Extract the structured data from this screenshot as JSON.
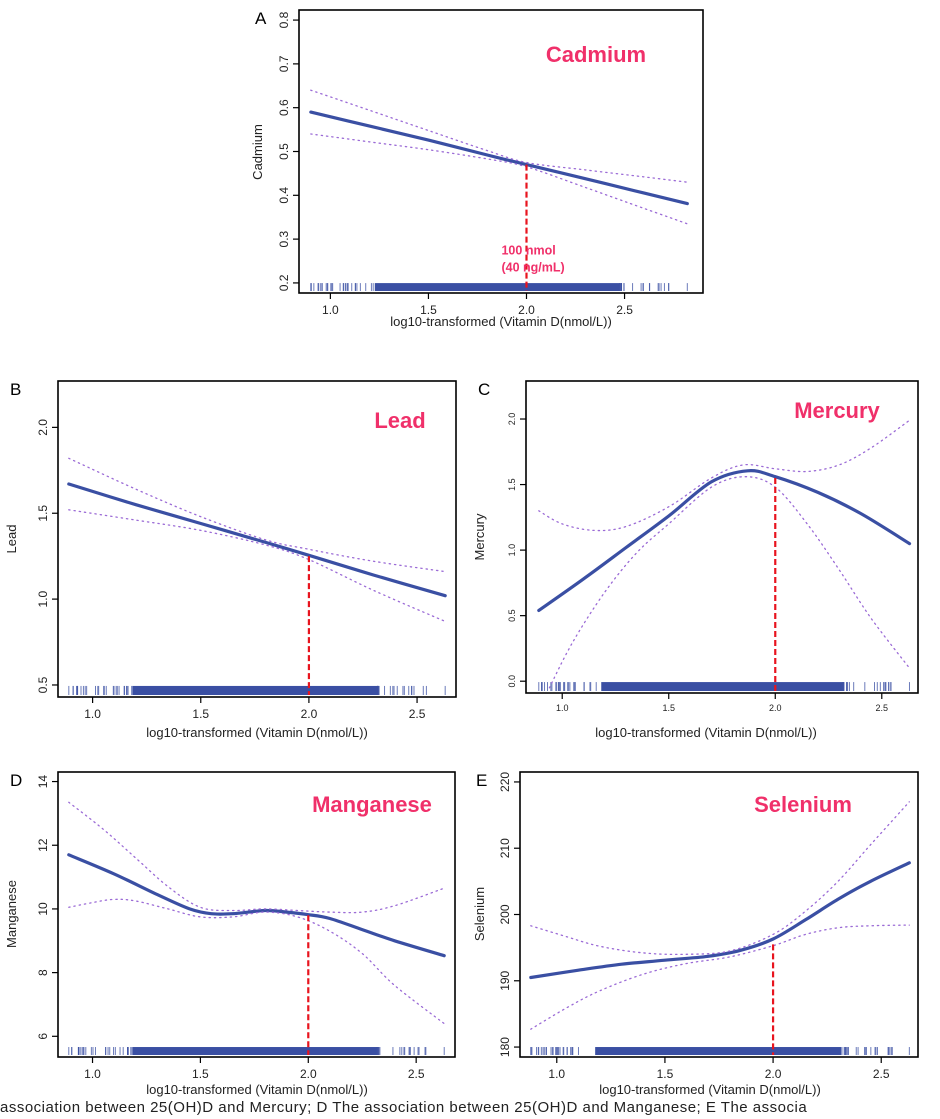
{
  "figure": {
    "caption_partial": "association between 25(OH)D and Mercury; D The association between 25(OH)D and Manganese; E The associa",
    "colors": {
      "fit_line": "#3A4FA3",
      "ci_line": "#9B6BD6",
      "threshold_line": "#E8141E",
      "element_label": "#F0306A",
      "rug": "#3A4FA3",
      "axis": "#000000"
    }
  },
  "chart_data": [
    {
      "panel": "A",
      "type": "line",
      "title": "Cadmium",
      "xlabel": "log10-transformed (Vitamin D(nmol/L))",
      "ylabel": "Cadmium",
      "xlim": [
        0.84,
        2.9
      ],
      "ylim": [
        0.177,
        0.823
      ],
      "xticks": [
        1.0,
        1.5,
        2.0,
        2.5
      ],
      "xtick_labels": [
        "1.0",
        "1.5",
        "2.0",
        "2.5"
      ],
      "yticks": [
        0.2,
        0.3,
        0.4,
        0.5,
        0.6,
        0.7,
        0.8
      ],
      "ytick_labels": [
        "0.2",
        "0.3",
        "0.4",
        "0.5",
        "0.6",
        "0.7",
        "0.8"
      ],
      "threshold_x": 2.0,
      "threshold_y": 0.47,
      "annotation": [
        "100 nmol",
        "(40 ng/mL)"
      ],
      "rug_range": [
        0.9,
        2.82
      ],
      "series": [
        {
          "name": "fit",
          "style": "solid",
          "x": [
            0.9,
            1.2,
            1.5,
            1.8,
            2.0,
            2.3,
            2.6,
            2.82
          ],
          "y": [
            0.59,
            0.558,
            0.526,
            0.492,
            0.47,
            0.438,
            0.405,
            0.381
          ]
        },
        {
          "name": "upper_ci",
          "style": "dotted",
          "x": [
            0.9,
            1.2,
            1.5,
            1.8,
            2.0,
            2.3,
            2.6,
            2.82
          ],
          "y": [
            0.64,
            0.594,
            0.548,
            0.502,
            0.475,
            0.458,
            0.442,
            0.43
          ]
        },
        {
          "name": "lower_ci",
          "style": "dotted",
          "x": [
            0.9,
            1.2,
            1.5,
            1.8,
            2.0,
            2.3,
            2.6,
            2.82
          ],
          "y": [
            0.54,
            0.522,
            0.504,
            0.483,
            0.465,
            0.418,
            0.37,
            0.335
          ]
        }
      ]
    },
    {
      "panel": "B",
      "type": "line",
      "title": "Lead",
      "xlabel": "log10-transformed (Vitamin D(nmol/L))",
      "ylabel": "Lead",
      "xlim": [
        0.84,
        2.68
      ],
      "ylim": [
        0.43,
        2.27
      ],
      "xticks": [
        1.0,
        1.5,
        2.0,
        2.5
      ],
      "xtick_labels": [
        "1.0",
        "1.5",
        "2.0",
        "2.5"
      ],
      "yticks": [
        0.5,
        1.0,
        1.5,
        2.0
      ],
      "ytick_labels": [
        "0.5",
        "1.0",
        "1.5",
        "2.0"
      ],
      "threshold_x": 2.0,
      "threshold_y": 1.25,
      "annotation": [],
      "rug_range": [
        0.89,
        2.63
      ],
      "series": [
        {
          "name": "fit",
          "style": "solid",
          "x": [
            0.89,
            1.2,
            1.5,
            1.8,
            2.0,
            2.3,
            2.63
          ],
          "y": [
            1.67,
            1.55,
            1.44,
            1.33,
            1.255,
            1.14,
            1.02
          ]
        },
        {
          "name": "upper_ci",
          "style": "dotted",
          "x": [
            0.89,
            1.2,
            1.5,
            1.8,
            2.0,
            2.3,
            2.63
          ],
          "y": [
            1.82,
            1.64,
            1.48,
            1.345,
            1.29,
            1.22,
            1.16
          ]
        },
        {
          "name": "lower_ci",
          "style": "dotted",
          "x": [
            0.89,
            1.2,
            1.5,
            1.8,
            2.0,
            2.3,
            2.63
          ],
          "y": [
            1.52,
            1.46,
            1.4,
            1.315,
            1.23,
            1.05,
            0.87
          ]
        }
      ]
    },
    {
      "panel": "C",
      "type": "line",
      "title": "Mercury",
      "xlabel": "log10-transformed (Vitamin D(nmol/L))",
      "ylabel": "Mercury",
      "xlim": [
        0.83,
        2.67
      ],
      "ylim": [
        -0.09,
        2.29
      ],
      "xticks": [
        1.0,
        1.5,
        2.0,
        2.5
      ],
      "xtick_labels": [
        "1.0",
        "1.5",
        "2.0",
        "2.5"
      ],
      "yticks": [
        0.0,
        0.5,
        1.0,
        1.5,
        2.0
      ],
      "ytick_labels": [
        "0.0",
        "0.5",
        "1.0",
        "1.5",
        "2.0"
      ],
      "threshold_x": 2.0,
      "threshold_y": 1.55,
      "annotation": [],
      "rug_range": [
        0.89,
        2.63
      ],
      "series": [
        {
          "name": "fit",
          "style": "solid",
          "x": [
            0.89,
            1.1,
            1.3,
            1.5,
            1.7,
            1.87,
            2.0,
            2.2,
            2.4,
            2.63
          ],
          "y": [
            0.54,
            0.78,
            1.02,
            1.26,
            1.52,
            1.605,
            1.56,
            1.44,
            1.28,
            1.05
          ]
        },
        {
          "name": "upper_ci",
          "style": "dotted",
          "x": [
            0.89,
            1.0,
            1.15,
            1.3,
            1.5,
            1.7,
            1.85,
            2.0,
            2.15,
            2.3,
            2.45,
            2.63
          ],
          "y": [
            1.3,
            1.2,
            1.15,
            1.18,
            1.33,
            1.55,
            1.65,
            1.62,
            1.6,
            1.65,
            1.78,
            1.99
          ]
        },
        {
          "name": "lower_ci",
          "style": "dotted",
          "x": [
            0.94,
            1.05,
            1.2,
            1.35,
            1.5,
            1.7,
            1.86,
            2.0,
            2.15,
            2.3,
            2.45,
            2.63
          ],
          "y": [
            -0.05,
            0.3,
            0.68,
            0.98,
            1.2,
            1.48,
            1.56,
            1.48,
            1.2,
            0.85,
            0.48,
            0.1
          ]
        }
      ]
    },
    {
      "panel": "D",
      "type": "line",
      "title": "Manganese",
      "xlabel": "log10-transformed (Vitamin D(nmol/L))",
      "ylabel": "Manganese",
      "xlim": [
        0.84,
        2.68
      ],
      "ylim": [
        5.35,
        14.3
      ],
      "xticks": [
        1.0,
        1.5,
        2.0,
        2.5
      ],
      "xtick_labels": [
        "1.0",
        "1.5",
        "2.0",
        "2.5"
      ],
      "yticks": [
        6,
        8,
        10,
        12,
        14
      ],
      "ytick_labels": [
        "6",
        "8",
        "10",
        "12",
        "14"
      ],
      "threshold_x": 2.0,
      "threshold_y": 9.8,
      "annotation": [],
      "rug_range": [
        0.89,
        2.63
      ],
      "series": [
        {
          "name": "fit",
          "style": "solid",
          "x": [
            0.89,
            1.1,
            1.3,
            1.45,
            1.55,
            1.65,
            1.8,
            1.9,
            2.0,
            2.1,
            2.25,
            2.4,
            2.63
          ],
          "y": [
            11.7,
            11.1,
            10.45,
            10.0,
            9.85,
            9.85,
            9.95,
            9.9,
            9.82,
            9.7,
            9.35,
            9.0,
            8.53
          ]
        },
        {
          "name": "upper_ci",
          "style": "dotted",
          "x": [
            0.89,
            1.05,
            1.2,
            1.35,
            1.5,
            1.65,
            1.8,
            1.95,
            2.1,
            2.25,
            2.4,
            2.63
          ],
          "y": [
            13.35,
            12.5,
            11.6,
            10.7,
            10.05,
            9.95,
            10.0,
            9.95,
            9.9,
            9.9,
            10.1,
            10.65
          ]
        },
        {
          "name": "lower_ci",
          "style": "dotted",
          "x": [
            0.89,
            1.0,
            1.1,
            1.2,
            1.35,
            1.5,
            1.65,
            1.8,
            1.95,
            2.1,
            2.25,
            2.4,
            2.63
          ],
          "y": [
            10.05,
            10.2,
            10.3,
            10.25,
            10.0,
            9.75,
            9.75,
            9.9,
            9.75,
            9.3,
            8.6,
            7.6,
            6.4
          ]
        }
      ]
    },
    {
      "panel": "E",
      "type": "line",
      "title": "Selenium",
      "xlabel": "log10-transformed (Vitamin D(nmol/L))",
      "ylabel": "Selenium",
      "xlim": [
        0.83,
        2.67
      ],
      "ylim": [
        178.5,
        221.5
      ],
      "xticks": [
        1.0,
        1.5,
        2.0,
        2.5
      ],
      "xtick_labels": [
        "1.0",
        "1.5",
        "2.0",
        "2.5"
      ],
      "yticks": [
        180,
        190,
        200,
        210,
        220
      ],
      "ytick_labels": [
        "180",
        "190",
        "200",
        "210",
        "220"
      ],
      "threshold_x": 2.0,
      "threshold_y": 195.5,
      "annotation": [],
      "rug_range": [
        0.88,
        2.63
      ],
      "series": [
        {
          "name": "fit",
          "style": "solid",
          "x": [
            0.88,
            1.1,
            1.3,
            1.5,
            1.7,
            1.85,
            2.0,
            2.15,
            2.3,
            2.45,
            2.63
          ],
          "y": [
            190.5,
            191.6,
            192.5,
            193.1,
            193.7,
            194.6,
            196.3,
            199.2,
            202.3,
            205.0,
            207.8
          ]
        },
        {
          "name": "upper_ci",
          "style": "dotted",
          "x": [
            0.88,
            1.05,
            1.2,
            1.4,
            1.6,
            1.8,
            2.0,
            2.15,
            2.3,
            2.45,
            2.63
          ],
          "y": [
            198.3,
            196.6,
            195.2,
            194.2,
            194.0,
            194.5,
            197.0,
            200.5,
            205.0,
            210.5,
            217.0
          ]
        },
        {
          "name": "lower_ci",
          "style": "dotted",
          "x": [
            0.88,
            1.05,
            1.2,
            1.4,
            1.6,
            1.8,
            2.0,
            2.15,
            2.3,
            2.45,
            2.63
          ],
          "y": [
            182.7,
            186.0,
            188.5,
            191.0,
            192.6,
            193.6,
            195.3,
            197.0,
            198.0,
            198.3,
            198.4
          ]
        }
      ]
    }
  ]
}
